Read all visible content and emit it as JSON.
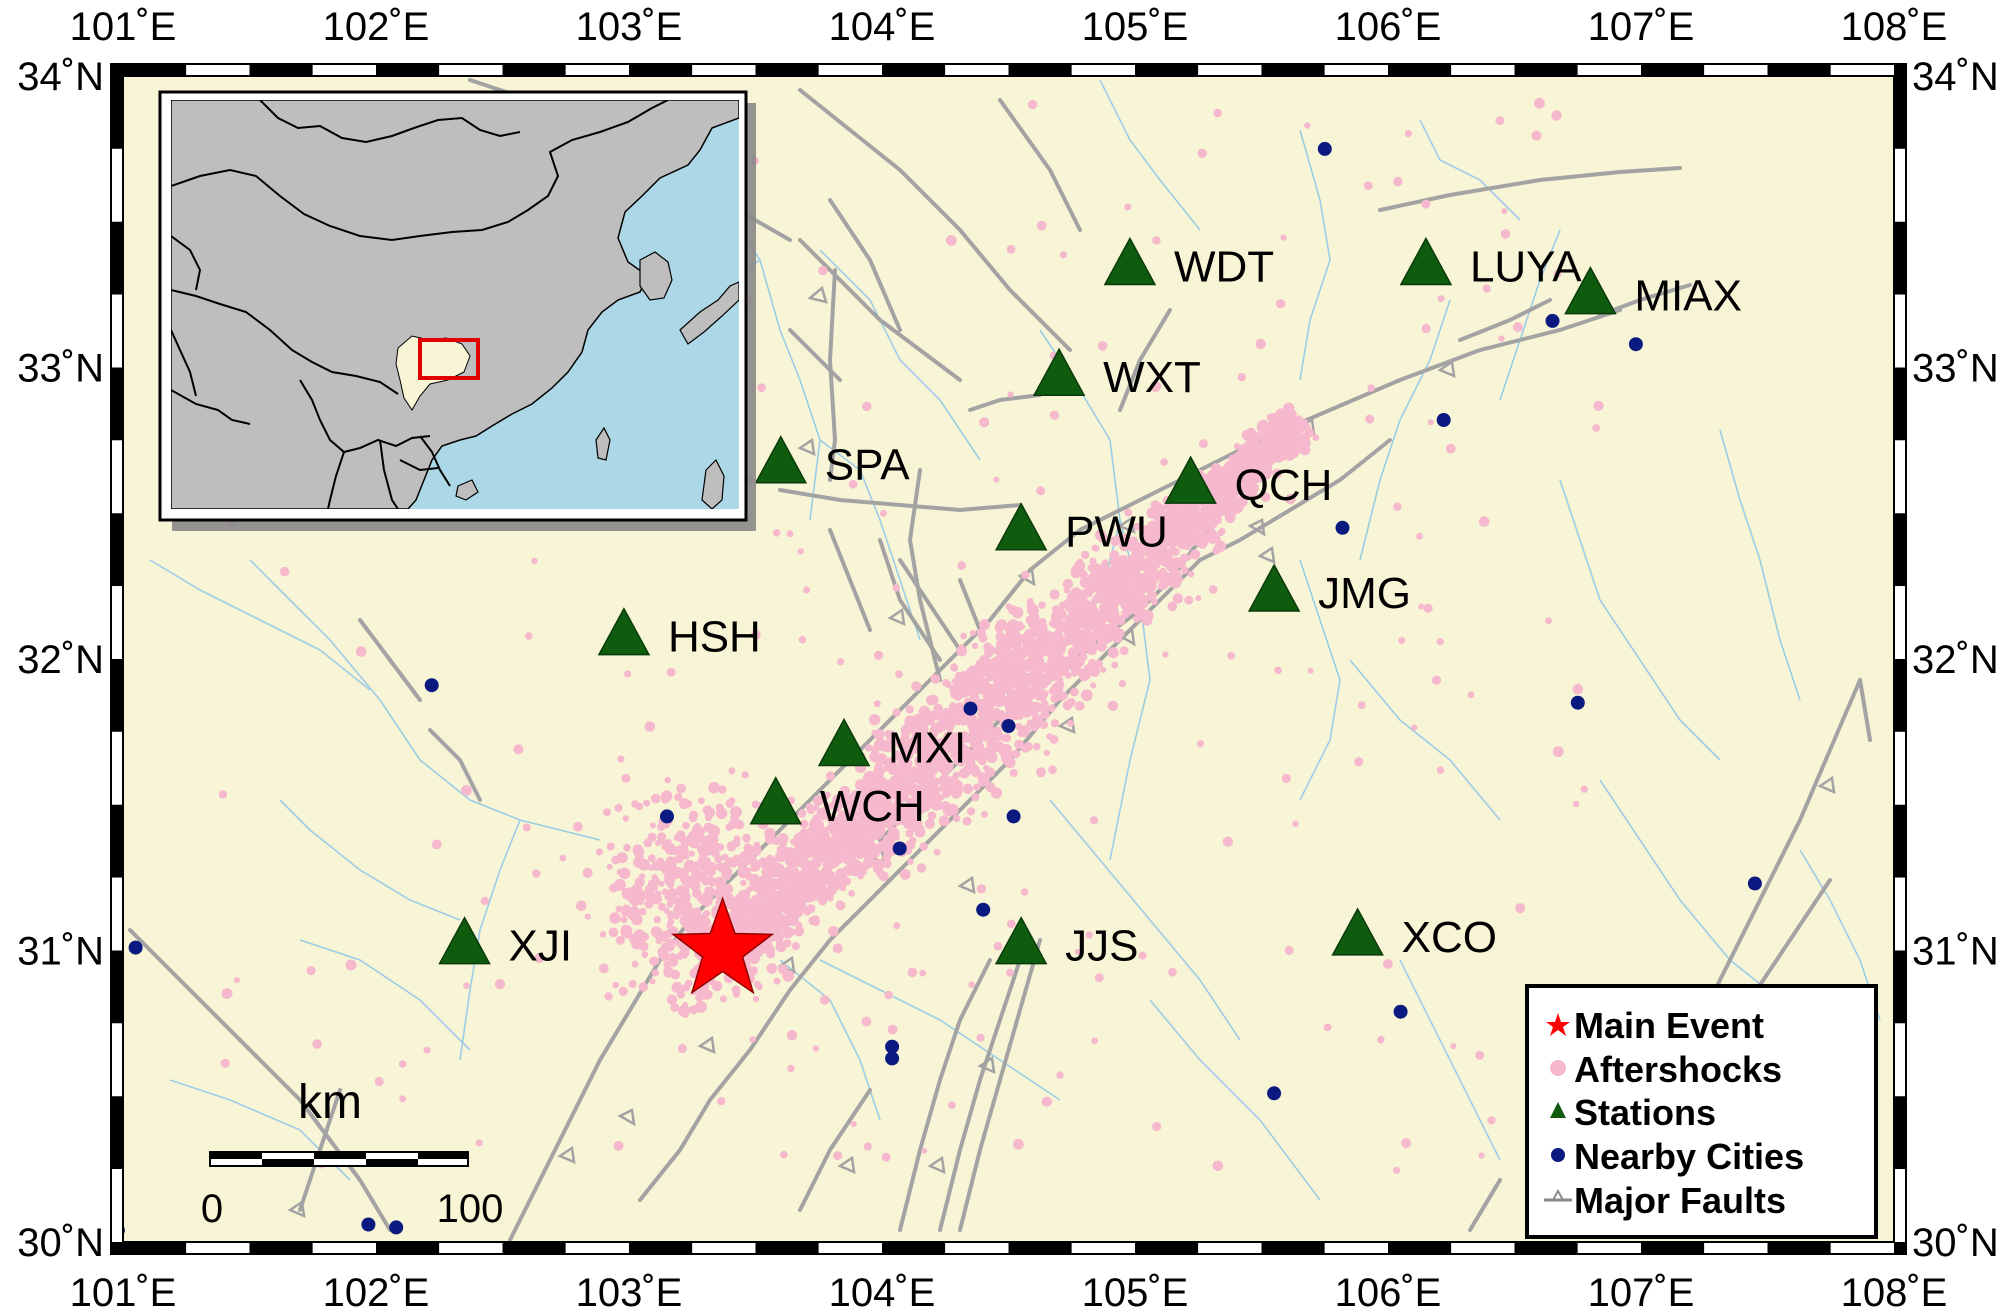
{
  "map": {
    "lon_min": 101,
    "lon_max": 108,
    "lat_min": 30,
    "lat_max": 34,
    "lon_ticks": [
      {
        "value": 101,
        "label": "101˚E"
      },
      {
        "value": 102,
        "label": "102˚E"
      },
      {
        "value": 103,
        "label": "103˚E"
      },
      {
        "value": 104,
        "label": "104˚E"
      },
      {
        "value": 105,
        "label": "105˚E"
      },
      {
        "value": 106,
        "label": "106˚E"
      },
      {
        "value": 107,
        "label": "107˚E"
      },
      {
        "value": 108,
        "label": "108˚E"
      }
    ],
    "lat_ticks": [
      {
        "value": 34,
        "label": "34˚N"
      },
      {
        "value": 33,
        "label": "33˚N"
      },
      {
        "value": 32,
        "label": "32˚N"
      },
      {
        "value": 31,
        "label": "31˚N"
      },
      {
        "value": 30,
        "label": "30˚N"
      }
    ],
    "colors": {
      "land": "#f8f4d6",
      "aftershock": "#f6b8cc",
      "station": "#0f5c0f",
      "city": "#0b1a80",
      "fault": "#a0a0a0",
      "river": "#9ccde6",
      "main_event": "#ff0000",
      "inset_land": "#bebebe",
      "inset_sea": "#acd7e6",
      "inset_sichuan": "#f8f4d6",
      "inset_box": "#e00000"
    }
  },
  "main_event": {
    "lon": 103.37,
    "lat": 31.0
  },
  "stations": [
    {
      "code": "WDT",
      "lon": 104.98,
      "lat": 33.35
    },
    {
      "code": "LUYA",
      "lon": 106.15,
      "lat": 33.35
    },
    {
      "code": "MIAX",
      "lon": 106.8,
      "lat": 33.25
    },
    {
      "code": "WXT",
      "lon": 104.7,
      "lat": 32.97
    },
    {
      "code": "SPA",
      "lon": 103.6,
      "lat": 32.67
    },
    {
      "code": "QCH",
      "lon": 105.22,
      "lat": 32.6
    },
    {
      "code": "PWU",
      "lon": 104.55,
      "lat": 32.44
    },
    {
      "code": "JMG",
      "lon": 105.55,
      "lat": 32.23
    },
    {
      "code": "HSH",
      "lon": 102.98,
      "lat": 32.08
    },
    {
      "code": "MXI",
      "lon": 103.85,
      "lat": 31.7
    },
    {
      "code": "WCH",
      "lon": 103.58,
      "lat": 31.5
    },
    {
      "code": "XJI",
      "lon": 102.35,
      "lat": 31.02
    },
    {
      "code": "JJS",
      "lon": 104.55,
      "lat": 31.02
    },
    {
      "code": "XCO",
      "lon": 105.88,
      "lat": 31.05
    }
  ],
  "cities": [
    {
      "lon": 105.75,
      "lat": 33.75
    },
    {
      "lon": 106.65,
      "lat": 33.16
    },
    {
      "lon": 106.98,
      "lat": 33.08
    },
    {
      "lon": 106.22,
      "lat": 32.82
    },
    {
      "lon": 105.82,
      "lat": 32.45
    },
    {
      "lon": 102.22,
      "lat": 31.91
    },
    {
      "lon": 104.35,
      "lat": 31.83
    },
    {
      "lon": 104.5,
      "lat": 31.77
    },
    {
      "lon": 106.75,
      "lat": 31.85
    },
    {
      "lon": 103.15,
      "lat": 31.46
    },
    {
      "lon": 104.52,
      "lat": 31.46
    },
    {
      "lon": 104.07,
      "lat": 31.35
    },
    {
      "lon": 104.4,
      "lat": 31.14
    },
    {
      "lon": 101.05,
      "lat": 31.01
    },
    {
      "lon": 106.05,
      "lat": 30.79
    },
    {
      "lon": 104.04,
      "lat": 30.67
    },
    {
      "lon": 104.04,
      "lat": 30.63
    },
    {
      "lon": 107.45,
      "lat": 31.23
    },
    {
      "lon": 105.55,
      "lat": 30.51
    },
    {
      "lon": 100.98,
      "lat": 30.04
    },
    {
      "lon": 101.97,
      "lat": 30.06
    },
    {
      "lon": 102.08,
      "lat": 30.05
    }
  ],
  "legend": {
    "items": [
      {
        "label": "Main Event",
        "symbol": "star"
      },
      {
        "label": "Aftershocks",
        "symbol": "dot"
      },
      {
        "label": "Stations",
        "symbol": "triangle"
      },
      {
        "label": "Nearby Cities",
        "symbol": "city"
      },
      {
        "label": "Major Faults",
        "symbol": "fault"
      }
    ]
  },
  "scale_bar": {
    "unit": "km",
    "start_label": "0",
    "end_label": "100"
  }
}
